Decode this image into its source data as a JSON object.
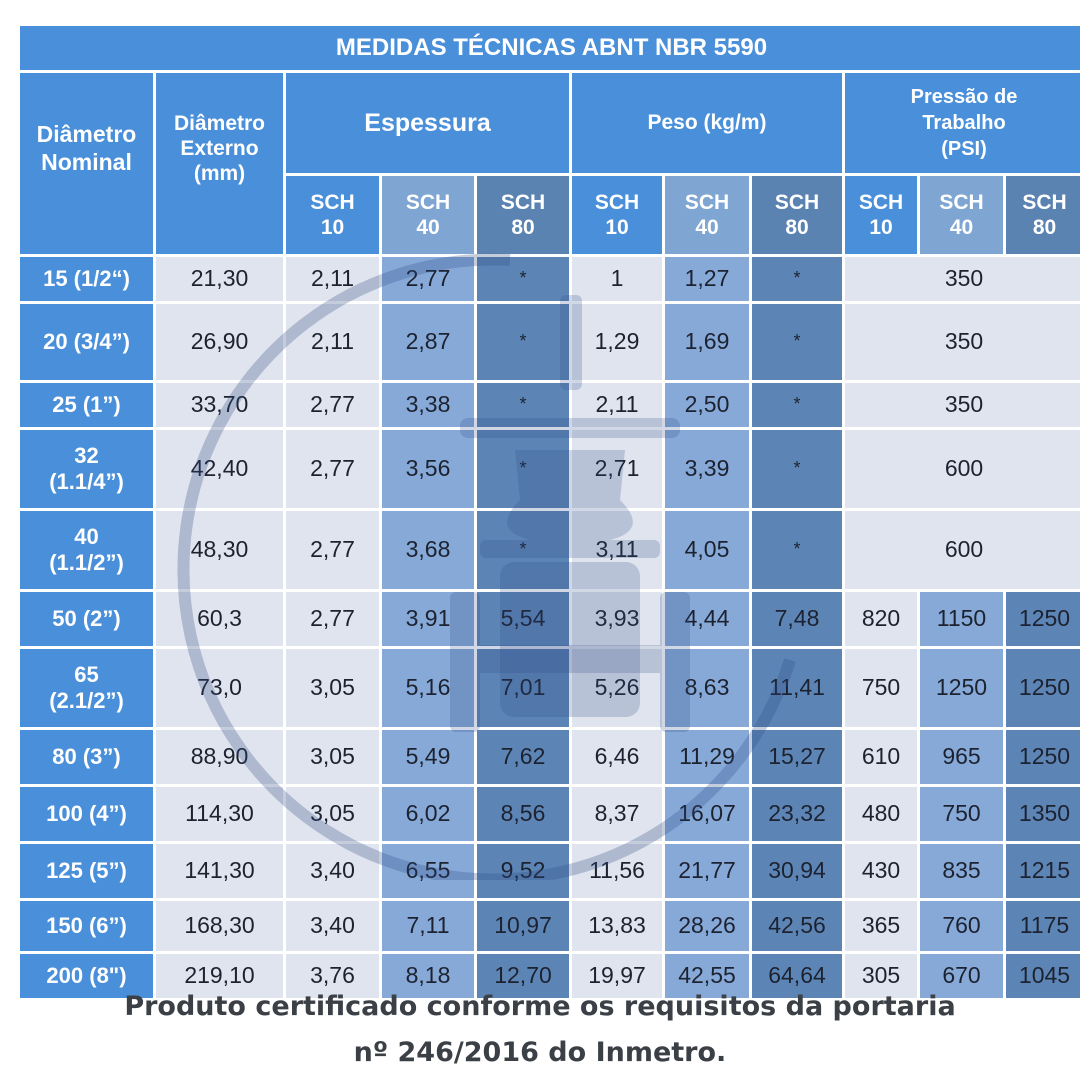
{
  "title": "MEDIDAS TÉCNICAS ABNT NBR 5590",
  "headers": {
    "nominal": "Diâmetro Nominal",
    "externo": "Diâmetro Externo (mm)",
    "espessura": "Espessura",
    "peso": "Peso (kg/m)",
    "pressao_1": "Pressão de",
    "pressao_2": "Trabalho",
    "pressao_3": "(PSI)",
    "sch_label": "SCH",
    "sch10": "10",
    "sch40": "40",
    "sch80": "80"
  },
  "rows": [
    {
      "nominal": "15 (1/2“)",
      "externo": "21,30",
      "esp10": "2,11",
      "esp40": "2,77",
      "esp80": "*",
      "peso10": "1",
      "peso40": "1,27",
      "peso80": "*",
      "pressao": "350"
    },
    {
      "nominal": "20 (3/4”)",
      "externo": "26,90",
      "esp10": "2,11",
      "esp40": "2,87",
      "esp80": "*",
      "peso10": "1,29",
      "peso40": "1,69",
      "peso80": "*",
      "pressao": "350"
    },
    {
      "nominal": "25 (1”)",
      "externo": "33,70",
      "esp10": "2,77",
      "esp40": "3,38",
      "esp80": "*",
      "peso10": "2,11",
      "peso40": "2,50",
      "peso80": "*",
      "pressao": "350"
    },
    {
      "nominal_1": "32",
      "nominal_2": "(1.1/4”)",
      "externo": "42,40",
      "esp10": "2,77",
      "esp40": "3,56",
      "esp80": "*",
      "peso10": "2,71",
      "peso40": "3,39",
      "peso80": "*",
      "pressao": "600"
    },
    {
      "nominal_1": "40",
      "nominal_2": "(1.1/2”)",
      "externo": "48,30",
      "esp10": "2,77",
      "esp40": "3,68",
      "esp80": "*",
      "peso10": "3,11",
      "peso40": "4,05",
      "peso80": "*",
      "pressao": "600"
    },
    {
      "nominal": "50 (2”)",
      "externo": "60,3",
      "esp10": "2,77",
      "esp40": "3,91",
      "esp80": "5,54",
      "peso10": "3,93",
      "peso40": "4,44",
      "peso80": "7,48",
      "psi10": "820",
      "psi40": "1150",
      "psi80": "1250"
    },
    {
      "nominal_1": "65",
      "nominal_2": "(2.1/2”)",
      "externo": "73,0",
      "esp10": "3,05",
      "esp40": "5,16",
      "esp80": "7,01",
      "peso10": "5,26",
      "peso40": "8,63",
      "peso80": "11,41",
      "psi10": "750",
      "psi40": "1250",
      "psi80": "1250"
    },
    {
      "nominal": "80 (3”)",
      "externo": "88,90",
      "esp10": "3,05",
      "esp40": "5,49",
      "esp80": "7,62",
      "peso10": "6,46",
      "peso40": "11,29",
      "peso80": "15,27",
      "psi10": "610",
      "psi40": "965",
      "psi80": "1250"
    },
    {
      "nominal": "100 (4”)",
      "externo": "114,30",
      "esp10": "3,05",
      "esp40": "6,02",
      "esp80": "8,56",
      "peso10": "8,37",
      "peso40": "16,07",
      "peso80": "23,32",
      "psi10": "480",
      "psi40": "750",
      "psi80": "1350"
    },
    {
      "nominal": "125 (5”)",
      "externo": "141,30",
      "esp10": "3,40",
      "esp40": "6,55",
      "esp80": "9,52",
      "peso10": "11,56",
      "peso40": "21,77",
      "peso80": "30,94",
      "psi10": "430",
      "psi40": "835",
      "psi80": "1215"
    },
    {
      "nominal": "150 (6”)",
      "externo": "168,30",
      "esp10": "3,40",
      "esp40": "7,11",
      "esp80": "10,97",
      "peso10": "13,83",
      "peso40": "28,26",
      "peso80": "42,56",
      "psi10": "365",
      "psi40": "760",
      "psi80": "1175"
    },
    {
      "nominal": "200 (8\")",
      "externo": "219,10",
      "esp10": "3,76",
      "esp40": "8,18",
      "esp80": "12,70",
      "peso10": "19,97",
      "peso40": "42,55",
      "peso80": "64,64",
      "psi10": "305",
      "psi40": "670",
      "psi80": "1045"
    }
  ],
  "footer_1": "Produto certificado conforme os requisitos da portaria",
  "footer_2": "nº 246/2016 do Inmetro.",
  "colors": {
    "header": "#4a8fd9",
    "light": "#dfe4ee",
    "medium": "#86a9d8",
    "dark": "#5c85b6",
    "footer_text": "#3b3f46"
  }
}
